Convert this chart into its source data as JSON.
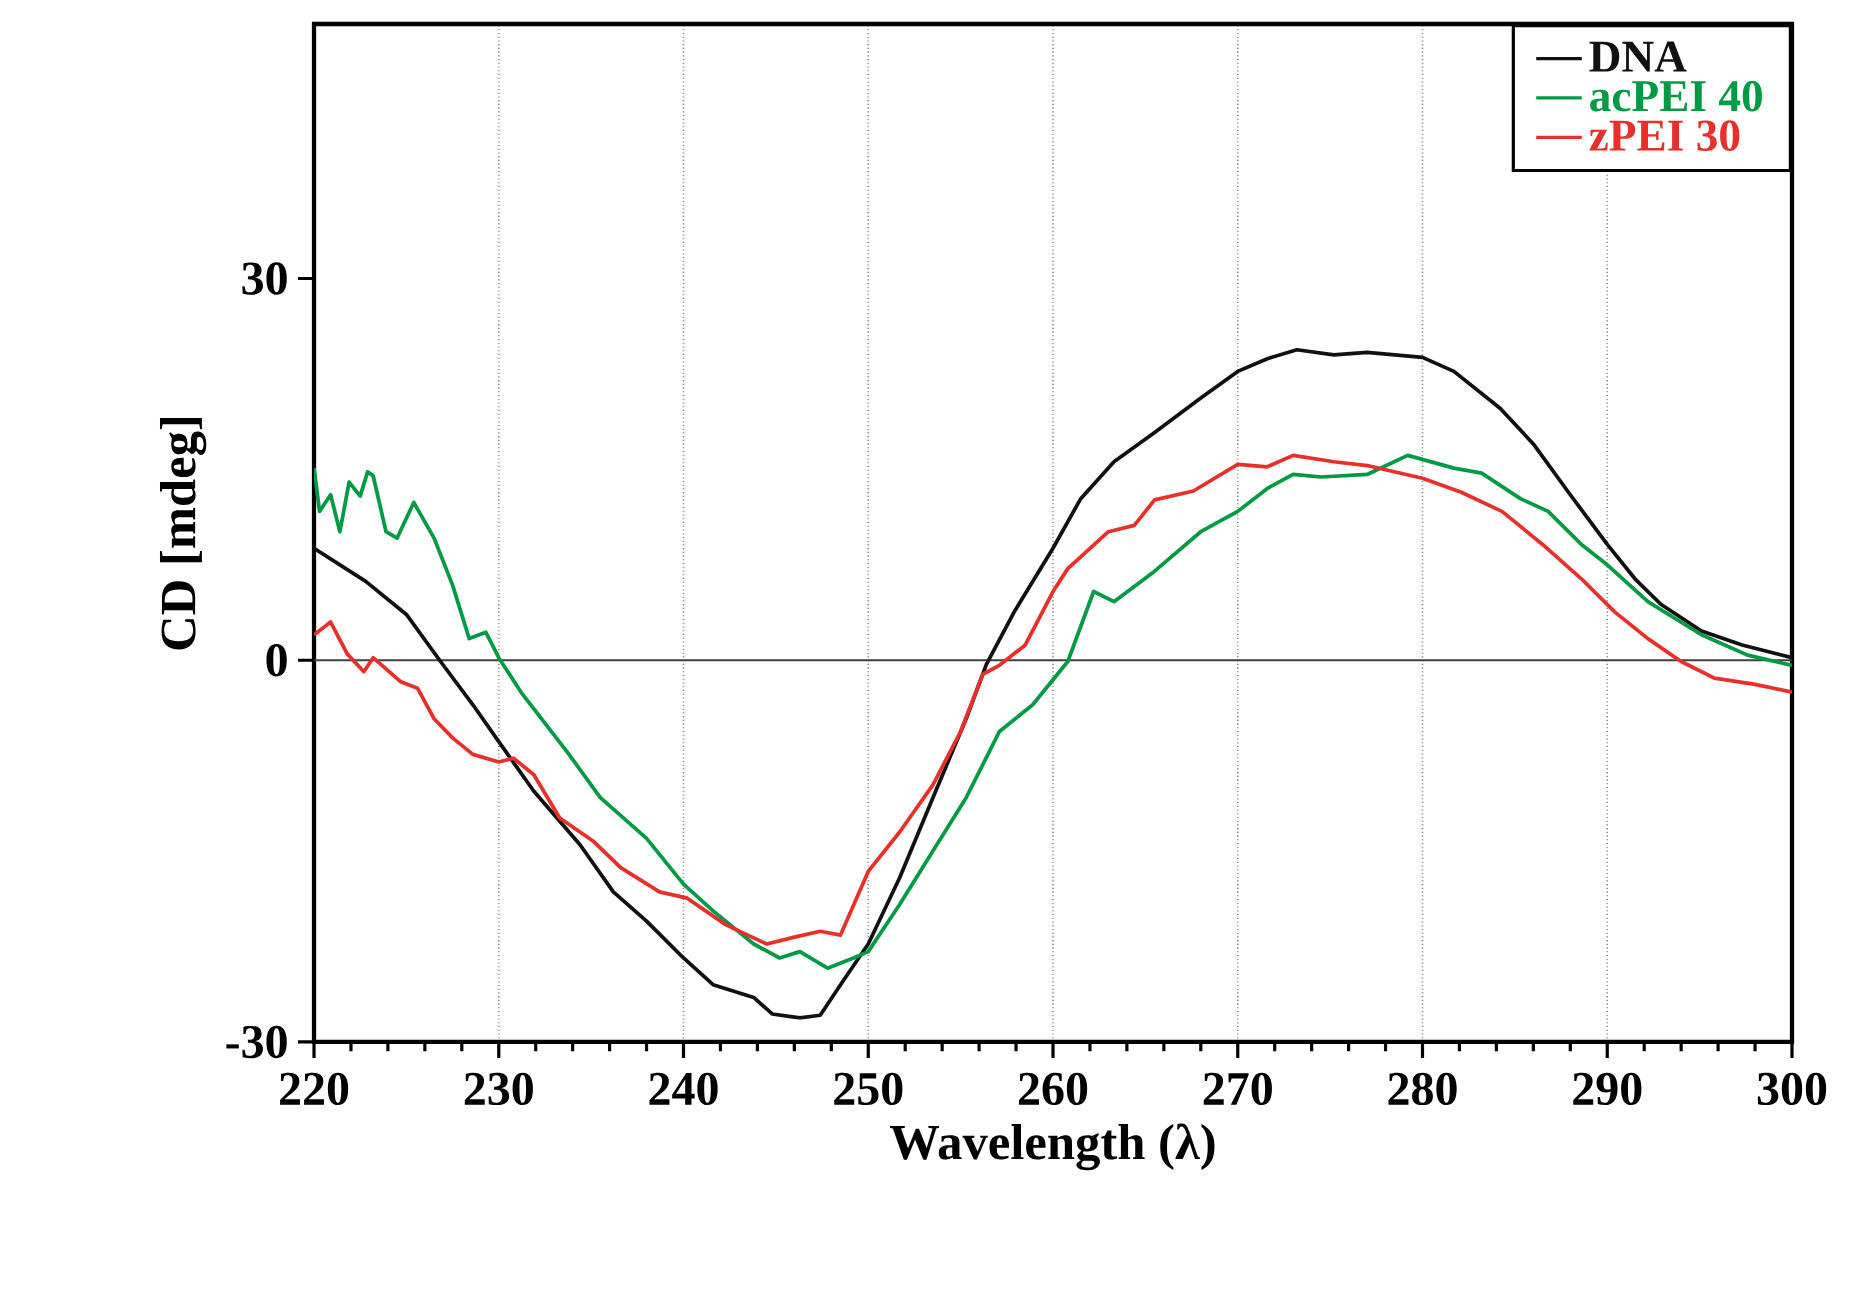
{
  "chart_data": {
    "type": "line",
    "xlabel": "Wavelength (λ)",
    "ylabel": "CD [mdeg]",
    "xlim": [
      220,
      300
    ],
    "xticks": [
      220,
      230,
      240,
      250,
      260,
      270,
      280,
      290,
      300
    ],
    "ylim": [
      -30,
      50
    ],
    "yticks": [
      -30,
      0,
      30
    ],
    "grid": "x",
    "legend": "top right",
    "marker": "none",
    "line_style": "solid",
    "ref_lines": [
      {
        "axis": "y",
        "value": 0,
        "color": "#404040"
      }
    ],
    "series": [
      {
        "name": "DNA",
        "color": "#111111",
        "x": [
          220,
          222.8,
          225,
          226.8,
          228.6,
          230,
          231.9,
          234.4,
          236.2,
          238,
          240,
          241.6,
          243.8,
          244.8,
          246.3,
          247.4,
          248.5,
          250,
          251.7,
          253.5,
          255.3,
          256.4,
          257.9,
          260,
          261.5,
          263.3,
          265.5,
          268,
          270,
          271.6,
          273.2,
          275.2,
          277,
          280,
          281.7,
          284.2,
          286,
          287.9,
          290,
          291.5,
          292.9,
          295.1,
          297.3,
          300
        ],
        "values": [
          8.8,
          6.2,
          3.6,
          0,
          -3.5,
          -6.4,
          -10.3,
          -14.5,
          -18.2,
          -20.5,
          -23.4,
          -25.5,
          -26.5,
          -27.8,
          -28.1,
          -27.9,
          -25.5,
          -22.3,
          -17.1,
          -10.8,
          -4.6,
          -0.3,
          3.8,
          8.8,
          12.7,
          15.6,
          17.9,
          20.6,
          22.7,
          23.7,
          24.4,
          24.0,
          24.2,
          23.8,
          22.7,
          19.8,
          17.0,
          13.2,
          9.1,
          6.4,
          4.4,
          2.3,
          1.2,
          0.2
        ]
      },
      {
        "name": "acPEI 40",
        "color": "#009a44",
        "x": [
          220,
          220.3,
          220.9,
          221.4,
          221.9,
          222.5,
          222.9,
          223.2,
          223.9,
          224.5,
          225.4,
          226.5,
          227.5,
          228.4,
          229.3,
          230,
          231.2,
          233.7,
          235.5,
          238,
          240,
          241.6,
          243.8,
          245.2,
          246.3,
          247.8,
          249.2,
          250,
          251.7,
          253.5,
          255.3,
          257.1,
          258.9,
          260.8,
          262.2,
          263.3,
          265.5,
          268,
          270,
          271.6,
          273,
          274.5,
          277,
          279.2,
          281.7,
          283.2,
          285.3,
          286.8,
          288.6,
          290,
          292.2,
          295.1,
          297.6,
          300
        ],
        "values": [
          15.1,
          11.7,
          13.0,
          10.1,
          14.0,
          12.9,
          14.8,
          14.5,
          10.1,
          9.6,
          12.4,
          9.6,
          5.9,
          1.7,
          2.2,
          0.2,
          -2.5,
          -7.2,
          -10.8,
          -14.0,
          -17.6,
          -19.7,
          -22.3,
          -23.4,
          -22.9,
          -24.2,
          -23.4,
          -22.9,
          -19.2,
          -15.0,
          -10.8,
          -5.6,
          -3.5,
          -0.1,
          5.4,
          4.6,
          7.0,
          10.1,
          11.7,
          13.5,
          14.6,
          14.4,
          14.6,
          16.1,
          15.1,
          14.7,
          12.7,
          11.7,
          9.1,
          7.5,
          4.6,
          2.0,
          0.4,
          -0.4
        ]
      },
      {
        "name": "zPEI 30",
        "color": "#e8302a",
        "x": [
          220,
          220.9,
          221.8,
          222.7,
          223.2,
          224.7,
          225.6,
          226.5,
          227.5,
          228.6,
          230,
          230.8,
          231.9,
          233.3,
          235.1,
          236.6,
          238.7,
          240.2,
          242.3,
          244.5,
          245.9,
          247.4,
          248.5,
          250,
          251.7,
          253.5,
          255,
          256.2,
          257.1,
          258.5,
          260,
          260.8,
          263,
          264.4,
          265.5,
          267.6,
          270,
          271.6,
          273,
          275.2,
          277,
          280,
          282.1,
          284.3,
          286.5,
          288.6,
          290.4,
          292.2,
          294,
          295.8,
          298,
          300
        ],
        "values": [
          2.0,
          3.0,
          0.5,
          -0.9,
          0.2,
          -1.7,
          -2.2,
          -4.6,
          -6.1,
          -7.4,
          -8.0,
          -7.7,
          -9.0,
          -12.4,
          -14.2,
          -16.3,
          -18.2,
          -18.7,
          -20.8,
          -22.3,
          -21.8,
          -21.3,
          -21.6,
          -16.6,
          -13.5,
          -9.8,
          -5.6,
          -1.1,
          -0.4,
          1.2,
          5.4,
          7.2,
          10.1,
          10.6,
          12.6,
          13.3,
          15.4,
          15.2,
          16.1,
          15.6,
          15.3,
          14.3,
          13.2,
          11.7,
          9.1,
          6.4,
          3.8,
          1.7,
          -0.1,
          -1.4,
          -1.9,
          -2.5
        ]
      }
    ]
  }
}
